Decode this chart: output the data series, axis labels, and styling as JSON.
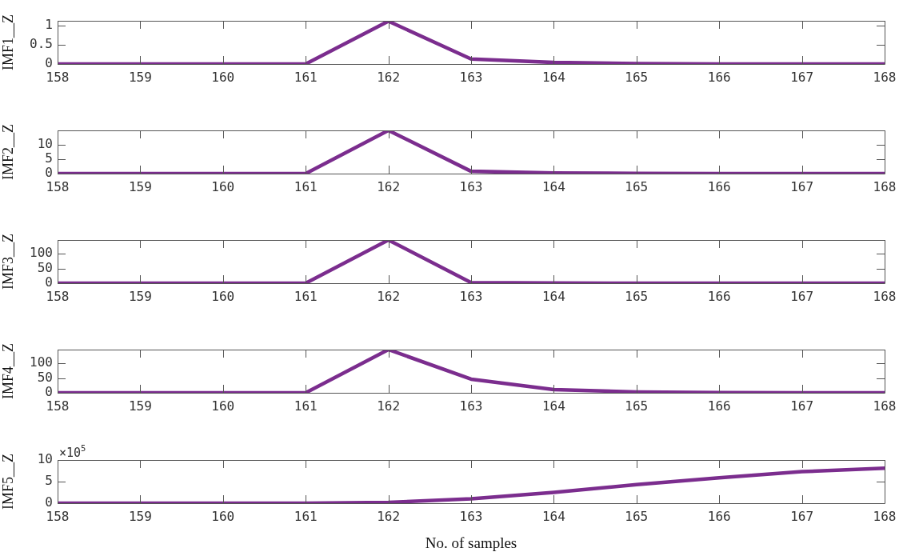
{
  "chart_data": [
    {
      "type": "line",
      "ylabel": "IMF1__Z",
      "x": [
        158,
        159,
        160,
        161,
        162,
        163,
        164,
        165,
        166,
        167,
        168
      ],
      "xlim": [
        158,
        168
      ],
      "xticks": [
        158,
        159,
        160,
        161,
        162,
        163,
        164,
        165,
        166,
        167,
        168
      ],
      "ylim": [
        0,
        1.13
      ],
      "yticks": [
        0,
        0.5,
        1
      ],
      "series": [
        {
          "color": "#7b2d8e",
          "values": [
            0,
            0,
            0,
            0,
            1.12,
            0.13,
            0.04,
            0.01,
            0,
            0,
            0
          ]
        }
      ]
    },
    {
      "type": "line",
      "ylabel": "IMF2__Z",
      "x": [
        158,
        159,
        160,
        161,
        162,
        163,
        164,
        165,
        166,
        167,
        168
      ],
      "xlim": [
        158,
        168
      ],
      "xticks": [
        158,
        159,
        160,
        161,
        162,
        163,
        164,
        165,
        166,
        167,
        168
      ],
      "ylim": [
        0,
        15
      ],
      "yticks": [
        0,
        5,
        10
      ],
      "series": [
        {
          "color": "#7b2d8e",
          "values": [
            0,
            0,
            0,
            0,
            15,
            0.8,
            0.2,
            0.1,
            0,
            0,
            0
          ]
        }
      ]
    },
    {
      "type": "line",
      "ylabel": "IMF3__Z",
      "x": [
        158,
        159,
        160,
        161,
        162,
        163,
        164,
        165,
        166,
        167,
        168
      ],
      "xlim": [
        158,
        168
      ],
      "xticks": [
        158,
        159,
        160,
        161,
        162,
        163,
        164,
        165,
        166,
        167,
        168
      ],
      "ylim": [
        0,
        146
      ],
      "yticks": [
        0,
        50,
        100
      ],
      "series": [
        {
          "color": "#7b2d8e",
          "values": [
            0,
            0,
            0,
            0,
            146,
            2,
            1,
            0,
            0,
            0,
            0
          ]
        }
      ]
    },
    {
      "type": "line",
      "ylabel": "IMF4__Z",
      "x": [
        158,
        159,
        160,
        161,
        162,
        163,
        164,
        165,
        166,
        167,
        168
      ],
      "xlim": [
        158,
        168
      ],
      "xticks": [
        158,
        159,
        160,
        161,
        162,
        163,
        164,
        165,
        166,
        167,
        168
      ],
      "ylim": [
        0,
        146
      ],
      "yticks": [
        0,
        50,
        100
      ],
      "series": [
        {
          "color": "#7b2d8e",
          "values": [
            0,
            0,
            0,
            0,
            146,
            46,
            11,
            3,
            1,
            0,
            0
          ]
        }
      ]
    },
    {
      "type": "line",
      "ylabel": "IMF5__Z",
      "xlabel": "No. of samples",
      "annotations": [
        "×10$^{5}$"
      ],
      "x": [
        158,
        159,
        160,
        161,
        162,
        163,
        164,
        165,
        166,
        167,
        168
      ],
      "xlim": [
        158,
        168
      ],
      "xticks": [
        158,
        159,
        160,
        161,
        162,
        163,
        164,
        165,
        166,
        167,
        168
      ],
      "ylim": [
        0,
        10
      ],
      "yticks": [
        0,
        5,
        10
      ],
      "series": [
        {
          "color": "#7b2d8e",
          "values": [
            0,
            0,
            0,
            0,
            0.2,
            1,
            2.5,
            4.3,
            5.9,
            7.3,
            8.1
          ]
        }
      ]
    }
  ]
}
